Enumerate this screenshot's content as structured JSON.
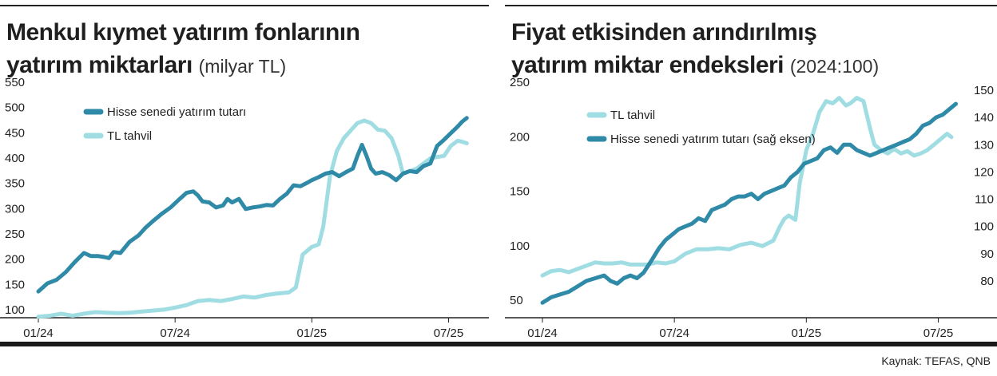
{
  "colors": {
    "dark_series": "#2f8aa8",
    "light_series": "#9fdde3",
    "axis": "#222222",
    "rule": "#1a1a1a"
  },
  "left_chart": {
    "title_line1": "Menkul kıymet yatırım fonlarının",
    "title_line2": "yatırım miktarları",
    "title_unit": "(milyar TL)"
  },
  "right_chart": {
    "title_line1": "Fiyat etkisinden arındırılmış",
    "title_line2": "yatırım miktar endeksleri",
    "title_unit": "(2024:100)"
  },
  "source": "Kaynak: TEFAS, QNB",
  "chart_data": [
    {
      "type": "line",
      "title": "Menkul kıymet yatırım fonlarının yatırım miktarları",
      "unit": "(milyar TL)",
      "xlabel": "",
      "ylabel": "",
      "x_range": [
        0,
        19
      ],
      "ylim": [
        100,
        550
      ],
      "y_ticks": [
        100,
        150,
        200,
        250,
        300,
        350,
        400,
        450,
        500,
        550
      ],
      "x_ticks": [
        {
          "x": 0,
          "label": "01/24"
        },
        {
          "x": 6,
          "label": "07/24"
        },
        {
          "x": 12,
          "label": "01/25"
        },
        {
          "x": 18,
          "label": "07/25"
        }
      ],
      "legend": {
        "placement": "top-left",
        "order": [
          "Hisse senedi yatırım tutarı",
          "TL tahvil"
        ]
      },
      "series": [
        {
          "name": "Hisse senedi yatırım tutarı",
          "color": "#2f8aa8",
          "points": [
            [
              0.0,
              152
            ],
            [
              0.4,
              168
            ],
            [
              0.8,
              175
            ],
            [
              1.2,
              190
            ],
            [
              1.6,
              210
            ],
            [
              2.0,
              228
            ],
            [
              2.3,
              222
            ],
            [
              2.6,
              222
            ],
            [
              2.9,
              220
            ],
            [
              3.1,
              218
            ],
            [
              3.3,
              230
            ],
            [
              3.6,
              228
            ],
            [
              4.0,
              250
            ],
            [
              4.4,
              263
            ],
            [
              4.7,
              278
            ],
            [
              5.0,
              290
            ],
            [
              5.4,
              305
            ],
            [
              5.8,
              318
            ],
            [
              6.2,
              335
            ],
            [
              6.5,
              347
            ],
            [
              6.8,
              350
            ],
            [
              7.0,
              342
            ],
            [
              7.2,
              330
            ],
            [
              7.5,
              328
            ],
            [
              7.8,
              318
            ],
            [
              8.1,
              322
            ],
            [
              8.3,
              335
            ],
            [
              8.5,
              328
            ],
            [
              8.8,
              335
            ],
            [
              9.1,
              315
            ],
            [
              9.4,
              318
            ],
            [
              9.7,
              320
            ],
            [
              10.0,
              323
            ],
            [
              10.3,
              322
            ],
            [
              10.6,
              335
            ],
            [
              10.9,
              345
            ],
            [
              11.2,
              362
            ],
            [
              11.5,
              360
            ],
            [
              11.8,
              367
            ],
            [
              12.0,
              372
            ],
            [
              12.3,
              378
            ],
            [
              12.6,
              385
            ],
            [
              12.9,
              388
            ],
            [
              13.2,
              380
            ],
            [
              13.5,
              388
            ],
            [
              13.8,
              395
            ],
            [
              14.0,
              420
            ],
            [
              14.2,
              442
            ],
            [
              14.4,
              420
            ],
            [
              14.6,
              395
            ],
            [
              14.8,
              385
            ],
            [
              15.1,
              388
            ],
            [
              15.4,
              382
            ],
            [
              15.7,
              372
            ],
            [
              16.0,
              385
            ],
            [
              16.3,
              390
            ],
            [
              16.6,
              388
            ],
            [
              16.9,
              400
            ],
            [
              17.2,
              405
            ],
            [
              17.5,
              440
            ],
            [
              17.8,
              452
            ],
            [
              18.1,
              465
            ],
            [
              18.4,
              478
            ],
            [
              18.6,
              488
            ],
            [
              18.8,
              495
            ]
          ]
        },
        {
          "name": "TL tahvil",
          "color": "#9fdde3",
          "points": [
            [
              0.0,
              102
            ],
            [
              0.5,
              104
            ],
            [
              1.0,
              108
            ],
            [
              1.5,
              104
            ],
            [
              2.0,
              108
            ],
            [
              2.5,
              111
            ],
            [
              3.0,
              110
            ],
            [
              3.5,
              109
            ],
            [
              4.0,
              110
            ],
            [
              4.5,
              112
            ],
            [
              5.0,
              114
            ],
            [
              5.5,
              116
            ],
            [
              6.0,
              120
            ],
            [
              6.5,
              125
            ],
            [
              7.0,
              133
            ],
            [
              7.5,
              135
            ],
            [
              8.0,
              133
            ],
            [
              8.5,
              137
            ],
            [
              9.0,
              142
            ],
            [
              9.5,
              140
            ],
            [
              10.0,
              145
            ],
            [
              10.5,
              148
            ],
            [
              11.0,
              150
            ],
            [
              11.3,
              160
            ],
            [
              11.6,
              225
            ],
            [
              12.0,
              240
            ],
            [
              12.3,
              245
            ],
            [
              12.5,
              280
            ],
            [
              12.8,
              380
            ],
            [
              13.1,
              430
            ],
            [
              13.4,
              455
            ],
            [
              13.7,
              470
            ],
            [
              14.0,
              485
            ],
            [
              14.3,
              490
            ],
            [
              14.6,
              485
            ],
            [
              14.9,
              472
            ],
            [
              15.2,
              470
            ],
            [
              15.5,
              455
            ],
            [
              15.8,
              420
            ],
            [
              16.0,
              385
            ],
            [
              16.3,
              390
            ],
            [
              16.6,
              395
            ],
            [
              16.9,
              405
            ],
            [
              17.2,
              415
            ],
            [
              17.5,
              418
            ],
            [
              17.8,
              420
            ],
            [
              18.1,
              440
            ],
            [
              18.4,
              450
            ],
            [
              18.6,
              448
            ],
            [
              18.8,
              445
            ]
          ]
        }
      ]
    },
    {
      "type": "line",
      "title": "Fiyat etkisinden arındırılmış yatırım miktar endeksleri",
      "unit": "(2024:100)",
      "xlabel": "",
      "ylabel": "",
      "x_range": [
        0,
        19
      ],
      "ylim_left": [
        50,
        250
      ],
      "ylim_right": [
        70,
        150
      ],
      "y_ticks_left": [
        50,
        100,
        150,
        200,
        250
      ],
      "y_ticks_right": [
        80,
        90,
        100,
        110,
        120,
        130,
        140,
        150
      ],
      "x_ticks": [
        {
          "x": 0,
          "label": "01/24"
        },
        {
          "x": 6,
          "label": "07/24"
        },
        {
          "x": 12,
          "label": "01/25"
        },
        {
          "x": 18,
          "label": "07/25"
        }
      ],
      "legend": {
        "placement": "top-left",
        "order": [
          "TL tahvil",
          "Hisse senedi yatırım tutarı (sağ eksen)"
        ]
      },
      "series": [
        {
          "name": "TL tahvil",
          "axis": "left",
          "color": "#9fdde3",
          "points": [
            [
              0.0,
              80
            ],
            [
              0.4,
              84
            ],
            [
              0.8,
              85
            ],
            [
              1.2,
              83
            ],
            [
              1.6,
              86
            ],
            [
              2.0,
              89
            ],
            [
              2.4,
              92
            ],
            [
              2.8,
              91
            ],
            [
              3.2,
              91
            ],
            [
              3.6,
              92
            ],
            [
              4.0,
              90
            ],
            [
              4.4,
              90
            ],
            [
              4.8,
              90
            ],
            [
              5.2,
              92
            ],
            [
              5.6,
              91
            ],
            [
              6.0,
              93
            ],
            [
              6.5,
              100
            ],
            [
              7.0,
              104
            ],
            [
              7.5,
              104
            ],
            [
              8.0,
              105
            ],
            [
              8.5,
              104
            ],
            [
              9.0,
              108
            ],
            [
              9.5,
              110
            ],
            [
              10.0,
              107
            ],
            [
              10.5,
              112
            ],
            [
              10.8,
              125
            ],
            [
              11.0,
              132
            ],
            [
              11.2,
              135
            ],
            [
              11.5,
              131
            ],
            [
              11.7,
              165
            ],
            [
              12.0,
              195
            ],
            [
              12.3,
              210
            ],
            [
              12.6,
              230
            ],
            [
              12.9,
              240
            ],
            [
              13.2,
              238
            ],
            [
              13.5,
              243
            ],
            [
              13.8,
              236
            ],
            [
              14.0,
              238
            ],
            [
              14.3,
              243
            ],
            [
              14.6,
              240
            ],
            [
              14.9,
              215
            ],
            [
              15.1,
              200
            ],
            [
              15.4,
              195
            ],
            [
              15.7,
              192
            ],
            [
              16.0,
              196
            ],
            [
              16.3,
              192
            ],
            [
              16.6,
              194
            ],
            [
              16.9,
              190
            ],
            [
              17.2,
              192
            ],
            [
              17.5,
              195
            ],
            [
              17.8,
              200
            ],
            [
              18.1,
              205
            ],
            [
              18.4,
              210
            ],
            [
              18.6,
              207
            ]
          ]
        },
        {
          "name": "Hisse senedi yatırım tutarı (sağ eksen)",
          "axis": "right",
          "color": "#2f8aa8",
          "points": [
            [
              0.0,
              72
            ],
            [
              0.4,
              74
            ],
            [
              0.8,
              75
            ],
            [
              1.2,
              76
            ],
            [
              1.6,
              78
            ],
            [
              2.0,
              80
            ],
            [
              2.4,
              81
            ],
            [
              2.8,
              82
            ],
            [
              3.1,
              80
            ],
            [
              3.4,
              79
            ],
            [
              3.7,
              81
            ],
            [
              4.0,
              82
            ],
            [
              4.3,
              81
            ],
            [
              4.6,
              83
            ],
            [
              5.0,
              88
            ],
            [
              5.3,
              92
            ],
            [
              5.6,
              95
            ],
            [
              5.9,
              97
            ],
            [
              6.2,
              99
            ],
            [
              6.5,
              100
            ],
            [
              6.8,
              101
            ],
            [
              7.1,
              103
            ],
            [
              7.4,
              102
            ],
            [
              7.7,
              106
            ],
            [
              8.0,
              107
            ],
            [
              8.3,
              108
            ],
            [
              8.6,
              110
            ],
            [
              8.9,
              111
            ],
            [
              9.2,
              111
            ],
            [
              9.5,
              112
            ],
            [
              9.8,
              110
            ],
            [
              10.1,
              112
            ],
            [
              10.4,
              113
            ],
            [
              10.7,
              114
            ],
            [
              11.0,
              115
            ],
            [
              11.3,
              118
            ],
            [
              11.6,
              120
            ],
            [
              11.9,
              123
            ],
            [
              12.2,
              124
            ],
            [
              12.5,
              125
            ],
            [
              12.8,
              128
            ],
            [
              13.1,
              129
            ],
            [
              13.4,
              127
            ],
            [
              13.7,
              130
            ],
            [
              14.0,
              130
            ],
            [
              14.3,
              128
            ],
            [
              14.6,
              127
            ],
            [
              14.9,
              126
            ],
            [
              15.2,
              127
            ],
            [
              15.5,
              128
            ],
            [
              15.8,
              129
            ],
            [
              16.1,
              130
            ],
            [
              16.4,
              131
            ],
            [
              16.7,
              132
            ],
            [
              17.0,
              134
            ],
            [
              17.3,
              137
            ],
            [
              17.6,
              138
            ],
            [
              17.9,
              140
            ],
            [
              18.2,
              141
            ],
            [
              18.5,
              143
            ],
            [
              18.8,
              145
            ]
          ]
        }
      ]
    }
  ]
}
